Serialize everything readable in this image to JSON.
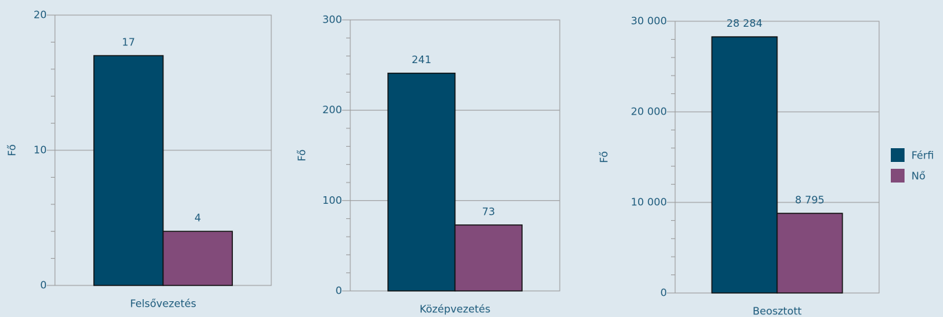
{
  "legend": [
    {
      "name": "Férfi",
      "color": "#004a6b"
    },
    {
      "name": "Nő",
      "color": "#824b7a"
    }
  ],
  "chart_data": [
    {
      "type": "bar",
      "categories": [
        "Felsővezetés"
      ],
      "y_label": "Fő",
      "series": [
        {
          "values": [
            17
          ]
        },
        {
          "values": [
            4
          ]
        }
      ],
      "ylim": [
        0,
        20
      ],
      "yticks": [
        0,
        10,
        20
      ],
      "grid": true
    },
    {
      "type": "bar",
      "categories": [
        "Középvezetés"
      ],
      "y_label": "Fő",
      "series": [
        {
          "values": [
            241
          ]
        },
        {
          "values": [
            73
          ]
        }
      ],
      "ylim": [
        0,
        300
      ],
      "yticks": [
        0,
        100,
        200,
        300
      ],
      "grid": true
    },
    {
      "type": "bar",
      "categories": [
        "Beosztott"
      ],
      "y_label": "Fő",
      "series": [
        {
          "values": [
            28284
          ],
          "value_labels": [
            "28 284"
          ]
        },
        {
          "values": [
            8795
          ],
          "value_labels": [
            "8 795"
          ]
        }
      ],
      "ylim": [
        0,
        30000
      ],
      "yticks": [
        0,
        {
          "value": 10000,
          "label": "10 000"
        },
        {
          "value": 20000,
          "label": "20 000"
        },
        {
          "value": 30000,
          "label": "30 000"
        }
      ],
      "grid": true
    }
  ]
}
